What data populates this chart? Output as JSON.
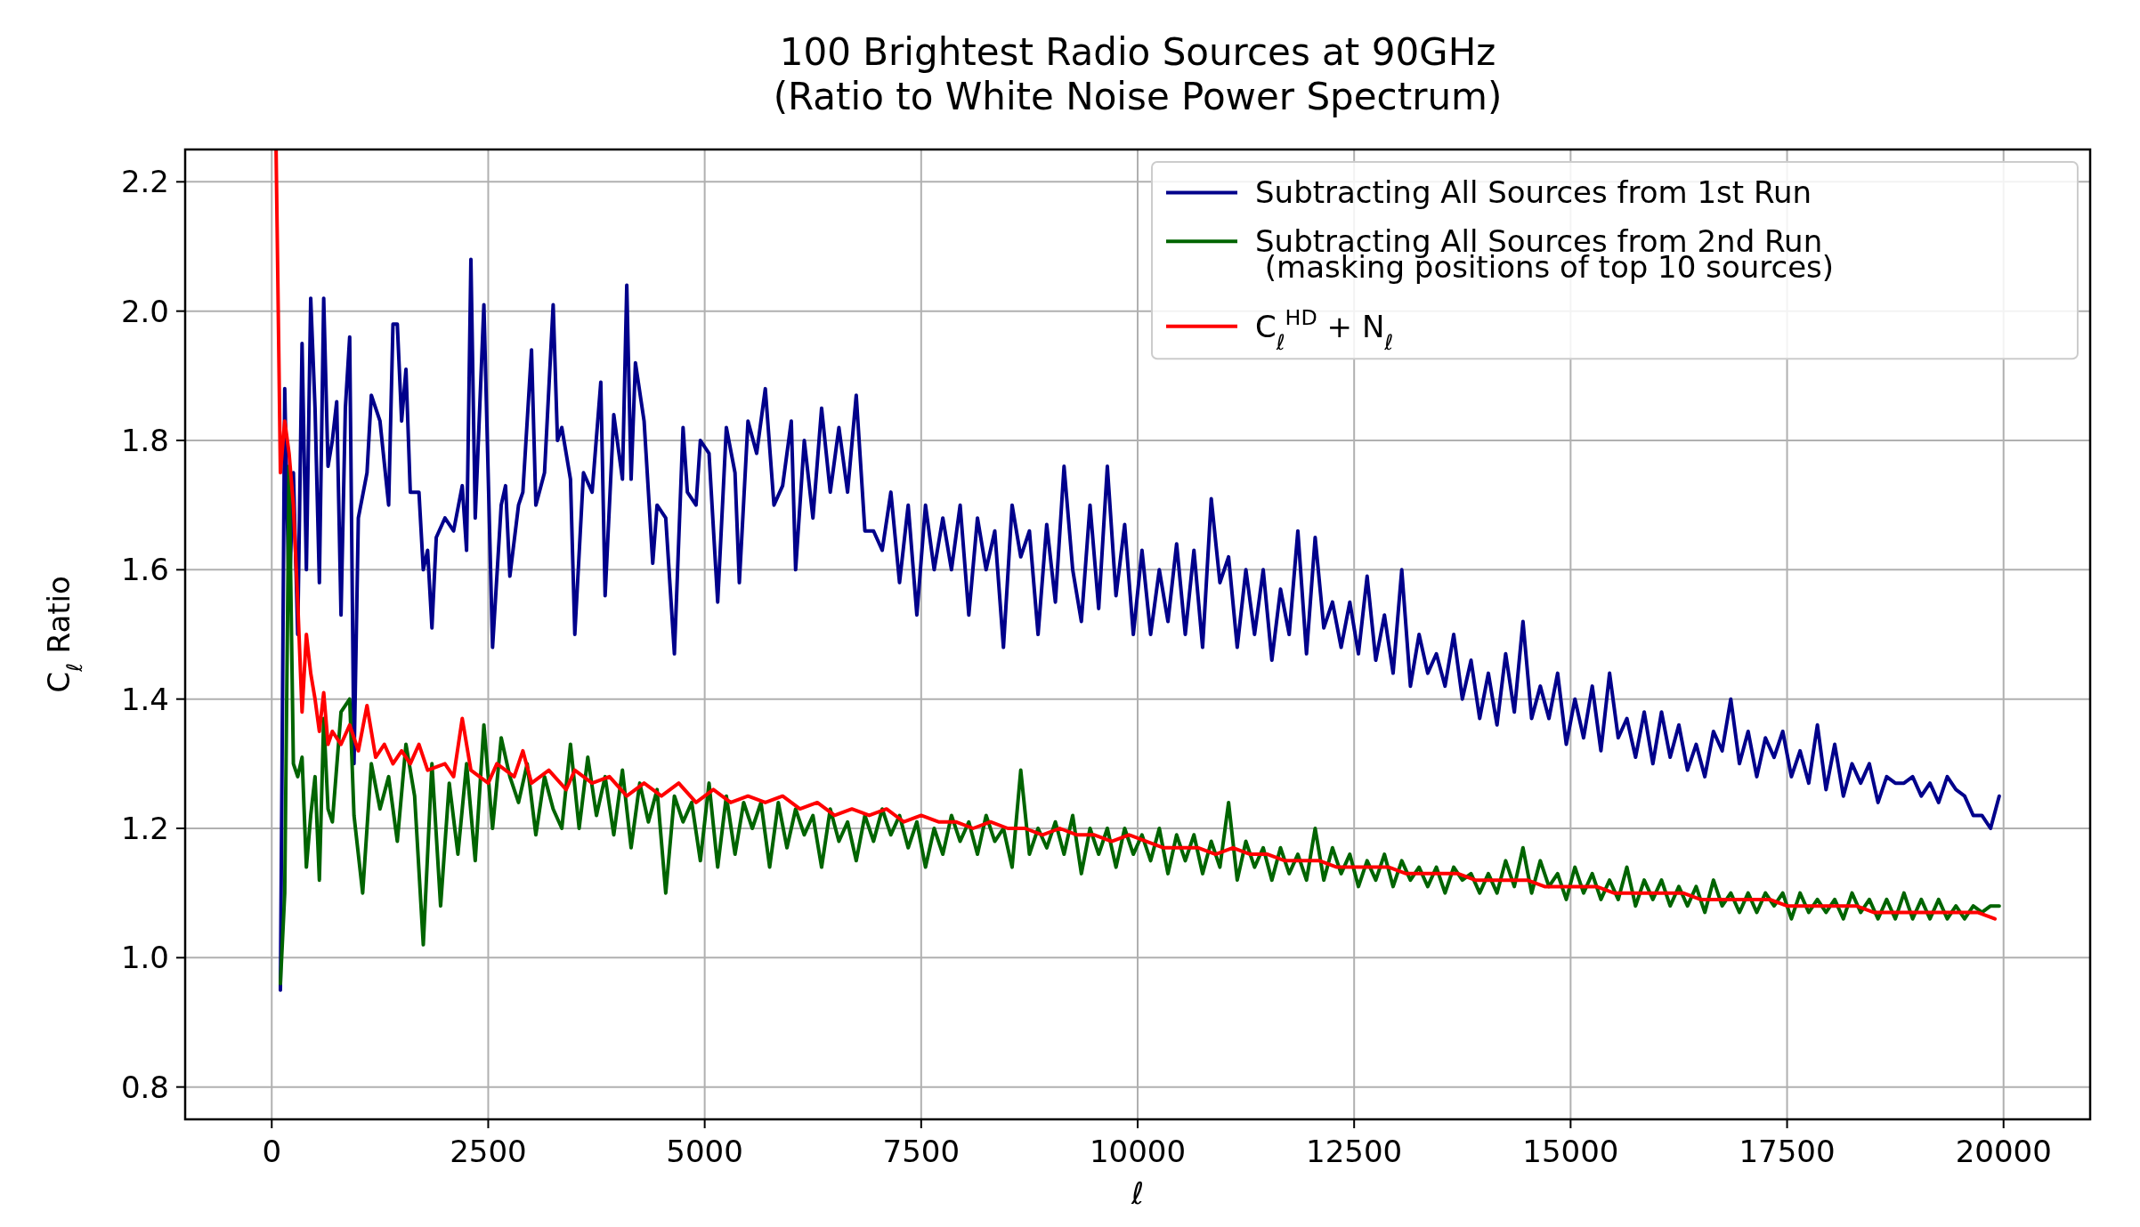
{
  "chart_data": {
    "type": "line",
    "title": "100 Brightest Radio Sources at 90GHz\n(Ratio to White Noise Power Spectrum)",
    "xlabel": "ℓ",
    "ylabel": "C$_{ℓ}$ Ratio",
    "xlim": [
      -1000,
      21000
    ],
    "ylim": [
      0.75,
      2.25
    ],
    "xticks": [
      0,
      2500,
      5000,
      7500,
      10000,
      12500,
      15000,
      17500,
      20000
    ],
    "yticks": [
      {
        "value": 0.8,
        "label": "0.8"
      },
      {
        "value": 1.0,
        "label": "1.0"
      },
      {
        "value": 1.2,
        "label": "1.2"
      },
      {
        "value": 1.4,
        "label": "1.4"
      },
      {
        "value": 1.6,
        "label": "1.6"
      },
      {
        "value": 1.8,
        "label": "1.8"
      },
      {
        "value": 2.0,
        "label": "2.0"
      },
      {
        "value": 2.2,
        "label": "2.2"
      }
    ],
    "grid": true,
    "legend": "top right",
    "series": [
      {
        "name": "Subtracting All Sources from 1st Run",
        "color": "#00008b",
        "x": [
          100,
          150,
          200,
          250,
          300,
          350,
          400,
          450,
          500,
          550,
          600,
          650,
          700,
          750,
          800,
          850,
          900,
          950,
          1000,
          1100,
          1150,
          1250,
          1350,
          1400,
          1450,
          1500,
          1550,
          1600,
          1700,
          1750,
          1800,
          1850,
          1900,
          2000,
          2100,
          2200,
          2250,
          2300,
          2350,
          2450,
          2550,
          2650,
          2700,
          2750,
          2850,
          2900,
          3000,
          3050,
          3150,
          3250,
          3300,
          3350,
          3450,
          3500,
          3600,
          3700,
          3800,
          3850,
          3950,
          4050,
          4100,
          4150,
          4200,
          4300,
          4400,
          4450,
          4550,
          4650,
          4750,
          4800,
          4900,
          4950,
          5050,
          5150,
          5250,
          5350,
          5400,
          5500,
          5600,
          5700,
          5800,
          5900,
          6000,
          6050,
          6150,
          6250,
          6350,
          6450,
          6550,
          6650,
          6750,
          6850,
          6950,
          7050,
          7150,
          7250,
          7350,
          7450,
          7550,
          7650,
          7750,
          7850,
          7950,
          8050,
          8150,
          8250,
          8350,
          8450,
          8550,
          8650,
          8750,
          8850,
          8950,
          9050,
          9150,
          9250,
          9350,
          9450,
          9550,
          9650,
          9750,
          9850,
          9950,
          10050,
          10150,
          10250,
          10350,
          10450,
          10550,
          10650,
          10750,
          10850,
          10950,
          11050,
          11150,
          11250,
          11350,
          11450,
          11550,
          11650,
          11750,
          11850,
          11950,
          12050,
          12150,
          12250,
          12350,
          12450,
          12550,
          12650,
          12750,
          12850,
          12950,
          13050,
          13150,
          13250,
          13350,
          13450,
          13550,
          13650,
          13750,
          13850,
          13950,
          14050,
          14150,
          14250,
          14350,
          14450,
          14550,
          14650,
          14750,
          14850,
          14950,
          15050,
          15150,
          15250,
          15350,
          15450,
          15550,
          15650,
          15750,
          15850,
          15950,
          16050,
          16150,
          16250,
          16350,
          16450,
          16550,
          16650,
          16750,
          16850,
          16950,
          17050,
          17150,
          17250,
          17350,
          17450,
          17550,
          17650,
          17750,
          17850,
          17950,
          18050,
          18150,
          18250,
          18350,
          18450,
          18550,
          18650,
          18750,
          18850,
          18950,
          19050,
          19150,
          19250,
          19350,
          19450,
          19550,
          19650,
          19750,
          19850,
          19950
        ],
        "values": [
          0.95,
          1.88,
          1.55,
          1.75,
          1.5,
          1.95,
          1.6,
          2.02,
          1.85,
          1.58,
          2.02,
          1.76,
          1.8,
          1.86,
          1.53,
          1.85,
          1.96,
          1.3,
          1.68,
          1.75,
          1.87,
          1.83,
          1.7,
          1.98,
          1.98,
          1.83,
          1.91,
          1.72,
          1.72,
          1.6,
          1.63,
          1.51,
          1.65,
          1.68,
          1.66,
          1.73,
          1.63,
          2.08,
          1.68,
          2.01,
          1.48,
          1.7,
          1.73,
          1.59,
          1.7,
          1.72,
          1.94,
          1.7,
          1.75,
          2.01,
          1.8,
          1.82,
          1.74,
          1.5,
          1.75,
          1.72,
          1.89,
          1.56,
          1.84,
          1.74,
          2.04,
          1.74,
          1.92,
          1.83,
          1.61,
          1.7,
          1.68,
          1.47,
          1.82,
          1.72,
          1.7,
          1.8,
          1.78,
          1.55,
          1.82,
          1.75,
          1.58,
          1.83,
          1.78,
          1.88,
          1.7,
          1.73,
          1.83,
          1.6,
          1.8,
          1.68,
          1.85,
          1.72,
          1.82,
          1.72,
          1.87,
          1.66,
          1.66,
          1.63,
          1.72,
          1.58,
          1.7,
          1.53,
          1.7,
          1.6,
          1.68,
          1.6,
          1.7,
          1.53,
          1.68,
          1.6,
          1.66,
          1.48,
          1.7,
          1.62,
          1.66,
          1.5,
          1.67,
          1.55,
          1.76,
          1.6,
          1.52,
          1.7,
          1.54,
          1.76,
          1.56,
          1.67,
          1.5,
          1.63,
          1.5,
          1.6,
          1.52,
          1.64,
          1.5,
          1.63,
          1.48,
          1.71,
          1.58,
          1.62,
          1.48,
          1.6,
          1.5,
          1.6,
          1.46,
          1.57,
          1.5,
          1.66,
          1.47,
          1.65,
          1.51,
          1.55,
          1.48,
          1.55,
          1.47,
          1.59,
          1.46,
          1.53,
          1.44,
          1.6,
          1.42,
          1.5,
          1.44,
          1.47,
          1.42,
          1.5,
          1.4,
          1.46,
          1.37,
          1.44,
          1.36,
          1.47,
          1.38,
          1.52,
          1.37,
          1.42,
          1.37,
          1.44,
          1.33,
          1.4,
          1.34,
          1.42,
          1.32,
          1.44,
          1.34,
          1.37,
          1.31,
          1.38,
          1.3,
          1.38,
          1.31,
          1.36,
          1.29,
          1.33,
          1.28,
          1.35,
          1.32,
          1.4,
          1.3,
          1.35,
          1.28,
          1.34,
          1.31,
          1.35,
          1.28,
          1.32,
          1.27,
          1.36,
          1.26,
          1.33,
          1.25,
          1.3,
          1.27,
          1.3,
          1.24,
          1.28,
          1.27,
          1.27,
          1.28,
          1.25,
          1.27,
          1.24,
          1.28,
          1.26,
          1.25,
          1.22,
          1.22,
          1.2,
          1.25
        ]
      },
      {
        "name": "Subtracting All Sources from 2nd Run\n (masking positions of top 10 sources)",
        "color": "#006400",
        "x": [
          100,
          150,
          200,
          250,
          300,
          350,
          400,
          450,
          500,
          550,
          600,
          650,
          700,
          800,
          900,
          950,
          1050,
          1150,
          1250,
          1350,
          1450,
          1550,
          1650,
          1750,
          1850,
          1950,
          2050,
          2150,
          2250,
          2350,
          2450,
          2550,
          2650,
          2750,
          2850,
          2950,
          3050,
          3150,
          3250,
          3350,
          3450,
          3550,
          3650,
          3750,
          3850,
          3950,
          4050,
          4150,
          4250,
          4350,
          4450,
          4550,
          4650,
          4750,
          4850,
          4950,
          5050,
          5150,
          5250,
          5350,
          5450,
          5550,
          5650,
          5750,
          5850,
          5950,
          6050,
          6150,
          6250,
          6350,
          6450,
          6550,
          6650,
          6750,
          6850,
          6950,
          7050,
          7150,
          7250,
          7350,
          7450,
          7550,
          7650,
          7750,
          7850,
          7950,
          8050,
          8150,
          8250,
          8350,
          8450,
          8550,
          8650,
          8750,
          8850,
          8950,
          9050,
          9150,
          9250,
          9350,
          9450,
          9550,
          9650,
          9750,
          9850,
          9950,
          10050,
          10150,
          10250,
          10350,
          10450,
          10550,
          10650,
          10750,
          10850,
          10950,
          11050,
          11150,
          11250,
          11350,
          11450,
          11550,
          11650,
          11750,
          11850,
          11950,
          12050,
          12150,
          12250,
          12350,
          12450,
          12550,
          12650,
          12750,
          12850,
          12950,
          13050,
          13150,
          13250,
          13350,
          13450,
          13550,
          13650,
          13750,
          13850,
          13950,
          14050,
          14150,
          14250,
          14350,
          14450,
          14550,
          14650,
          14750,
          14850,
          14950,
          15050,
          15150,
          15250,
          15350,
          15450,
          15550,
          15650,
          15750,
          15850,
          15950,
          16050,
          16150,
          16250,
          16350,
          16450,
          16550,
          16650,
          16750,
          16850,
          16950,
          17050,
          17150,
          17250,
          17350,
          17450,
          17550,
          17650,
          17750,
          17850,
          17950,
          18050,
          18150,
          18250,
          18350,
          18450,
          18550,
          18650,
          18750,
          18850,
          18950,
          19050,
          19150,
          19250,
          19350,
          19450,
          19550,
          19650,
          19750,
          19850,
          19950
        ],
        "values": [
          0.96,
          1.1,
          1.76,
          1.3,
          1.28,
          1.31,
          1.14,
          1.22,
          1.28,
          1.12,
          1.37,
          1.23,
          1.21,
          1.38,
          1.4,
          1.22,
          1.1,
          1.3,
          1.23,
          1.28,
          1.18,
          1.33,
          1.25,
          1.02,
          1.3,
          1.08,
          1.27,
          1.16,
          1.3,
          1.15,
          1.36,
          1.2,
          1.34,
          1.28,
          1.24,
          1.3,
          1.19,
          1.28,
          1.23,
          1.2,
          1.33,
          1.2,
          1.31,
          1.22,
          1.28,
          1.19,
          1.29,
          1.17,
          1.27,
          1.21,
          1.26,
          1.1,
          1.25,
          1.21,
          1.24,
          1.15,
          1.27,
          1.14,
          1.25,
          1.16,
          1.24,
          1.2,
          1.24,
          1.14,
          1.24,
          1.17,
          1.23,
          1.19,
          1.22,
          1.14,
          1.23,
          1.18,
          1.21,
          1.15,
          1.22,
          1.18,
          1.23,
          1.19,
          1.22,
          1.17,
          1.21,
          1.14,
          1.2,
          1.16,
          1.22,
          1.18,
          1.21,
          1.16,
          1.22,
          1.18,
          1.2,
          1.14,
          1.29,
          1.16,
          1.2,
          1.17,
          1.21,
          1.16,
          1.22,
          1.13,
          1.2,
          1.16,
          1.2,
          1.14,
          1.2,
          1.16,
          1.19,
          1.15,
          1.2,
          1.13,
          1.19,
          1.15,
          1.19,
          1.13,
          1.18,
          1.14,
          1.24,
          1.12,
          1.18,
          1.14,
          1.17,
          1.12,
          1.17,
          1.13,
          1.16,
          1.12,
          1.2,
          1.12,
          1.17,
          1.13,
          1.16,
          1.11,
          1.15,
          1.12,
          1.16,
          1.11,
          1.15,
          1.12,
          1.14,
          1.11,
          1.14,
          1.1,
          1.14,
          1.12,
          1.13,
          1.1,
          1.13,
          1.1,
          1.15,
          1.11,
          1.17,
          1.1,
          1.15,
          1.11,
          1.13,
          1.09,
          1.14,
          1.1,
          1.13,
          1.09,
          1.12,
          1.09,
          1.14,
          1.08,
          1.12,
          1.09,
          1.12,
          1.08,
          1.11,
          1.08,
          1.11,
          1.07,
          1.12,
          1.08,
          1.1,
          1.07,
          1.1,
          1.07,
          1.1,
          1.08,
          1.1,
          1.06,
          1.1,
          1.07,
          1.09,
          1.07,
          1.09,
          1.06,
          1.1,
          1.07,
          1.09,
          1.06,
          1.09,
          1.06,
          1.1,
          1.06,
          1.09,
          1.06,
          1.09,
          1.06,
          1.08,
          1.06,
          1.08,
          1.07,
          1.08,
          1.08
        ]
      },
      {
        "name": "C$_{ℓ}$$^{HD}$ + N$_{ℓ}$",
        "color": "#ff0000",
        "x": [
          50,
          100,
          150,
          200,
          250,
          300,
          350,
          400,
          450,
          500,
          550,
          600,
          650,
          700,
          800,
          900,
          1000,
          1100,
          1200,
          1300,
          1400,
          1500,
          1600,
          1700,
          1800,
          2000,
          2100,
          2200,
          2300,
          2500,
          2600,
          2800,
          2900,
          3000,
          3200,
          3400,
          3500,
          3700,
          3900,
          4100,
          4300,
          4500,
          4700,
          4900,
          5100,
          5300,
          5500,
          5700,
          5900,
          6100,
          6300,
          6500,
          6700,
          6900,
          7100,
          7300,
          7500,
          7700,
          7900,
          8100,
          8300,
          8500,
          8700,
          8900,
          9100,
          9300,
          9500,
          9700,
          9900,
          10100,
          10300,
          10500,
          10700,
          10900,
          11100,
          11300,
          11500,
          11700,
          11900,
          12100,
          12300,
          12500,
          12700,
          12900,
          13100,
          13300,
          13500,
          13700,
          13900,
          14100,
          14300,
          14500,
          14700,
          14900,
          15100,
          15300,
          15500,
          15700,
          15900,
          16100,
          16300,
          16500,
          16700,
          16900,
          17100,
          17300,
          17500,
          17700,
          17900,
          18100,
          18300,
          18500,
          18700,
          18900,
          19100,
          19300,
          19500,
          19700,
          19900
        ],
        "values": [
          2.25,
          1.75,
          1.83,
          1.78,
          1.7,
          1.55,
          1.38,
          1.5,
          1.44,
          1.4,
          1.35,
          1.41,
          1.33,
          1.35,
          1.33,
          1.36,
          1.32,
          1.39,
          1.31,
          1.33,
          1.3,
          1.32,
          1.3,
          1.33,
          1.29,
          1.3,
          1.28,
          1.37,
          1.29,
          1.27,
          1.3,
          1.28,
          1.32,
          1.27,
          1.29,
          1.26,
          1.29,
          1.27,
          1.28,
          1.25,
          1.27,
          1.25,
          1.27,
          1.24,
          1.26,
          1.24,
          1.25,
          1.24,
          1.25,
          1.23,
          1.24,
          1.22,
          1.23,
          1.22,
          1.23,
          1.21,
          1.22,
          1.21,
          1.21,
          1.2,
          1.21,
          1.2,
          1.2,
          1.19,
          1.2,
          1.19,
          1.19,
          1.18,
          1.19,
          1.18,
          1.17,
          1.17,
          1.17,
          1.16,
          1.17,
          1.16,
          1.16,
          1.15,
          1.15,
          1.15,
          1.14,
          1.14,
          1.14,
          1.14,
          1.13,
          1.13,
          1.13,
          1.13,
          1.12,
          1.12,
          1.12,
          1.12,
          1.11,
          1.11,
          1.11,
          1.11,
          1.1,
          1.1,
          1.1,
          1.1,
          1.1,
          1.09,
          1.09,
          1.09,
          1.09,
          1.09,
          1.08,
          1.08,
          1.08,
          1.08,
          1.08,
          1.07,
          1.07,
          1.07,
          1.07,
          1.07,
          1.07,
          1.07,
          1.06
        ]
      }
    ]
  }
}
